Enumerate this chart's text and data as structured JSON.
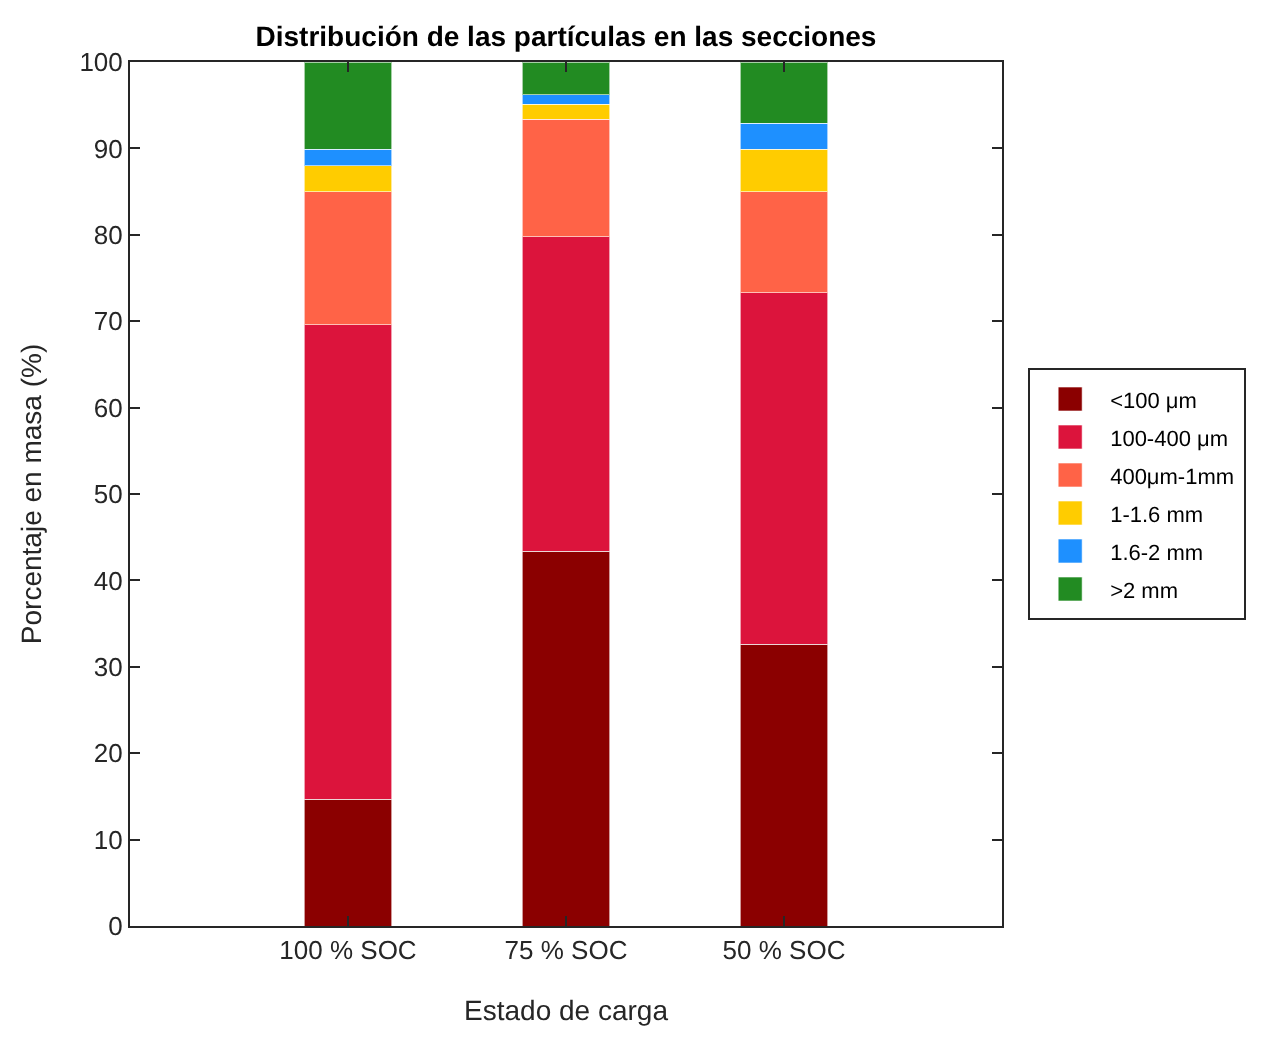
{
  "chart_data": {
    "type": "bar",
    "stacked": true,
    "title": "Distribución de las partículas en las secciones",
    "xlabel": "Estado de carga",
    "ylabel": "Porcentaje en masa (%)",
    "categories": [
      "100 % SOC",
      "75 % SOC",
      "50 % SOC"
    ],
    "series": [
      {
        "name": "<100 μm",
        "color": "#8b0000",
        "values": [
          14.7,
          43.4,
          32.6
        ]
      },
      {
        "name": "100-400 μm",
        "color": "#dc143c",
        "values": [
          54.9,
          36.4,
          40.7
        ]
      },
      {
        "name": "400μm-1mm",
        "color": "#ff6347",
        "values": [
          15.4,
          13.6,
          11.7
        ]
      },
      {
        "name": "1-1.6 mm",
        "color": "#ffcc00",
        "values": [
          3.0,
          1.7,
          4.9
        ]
      },
      {
        "name": "1.6-2 mm",
        "color": "#1e90ff",
        "values": [
          1.9,
          1.1,
          3.0
        ]
      },
      {
        "name": ">2 mm",
        "color": "#228b22",
        "values": [
          10.1,
          3.8,
          7.1
        ]
      }
    ],
    "ylim": [
      0,
      100
    ],
    "yticks": [
      0,
      10,
      20,
      30,
      40,
      50,
      60,
      70,
      80,
      90,
      100
    ],
    "legend": "right"
  }
}
